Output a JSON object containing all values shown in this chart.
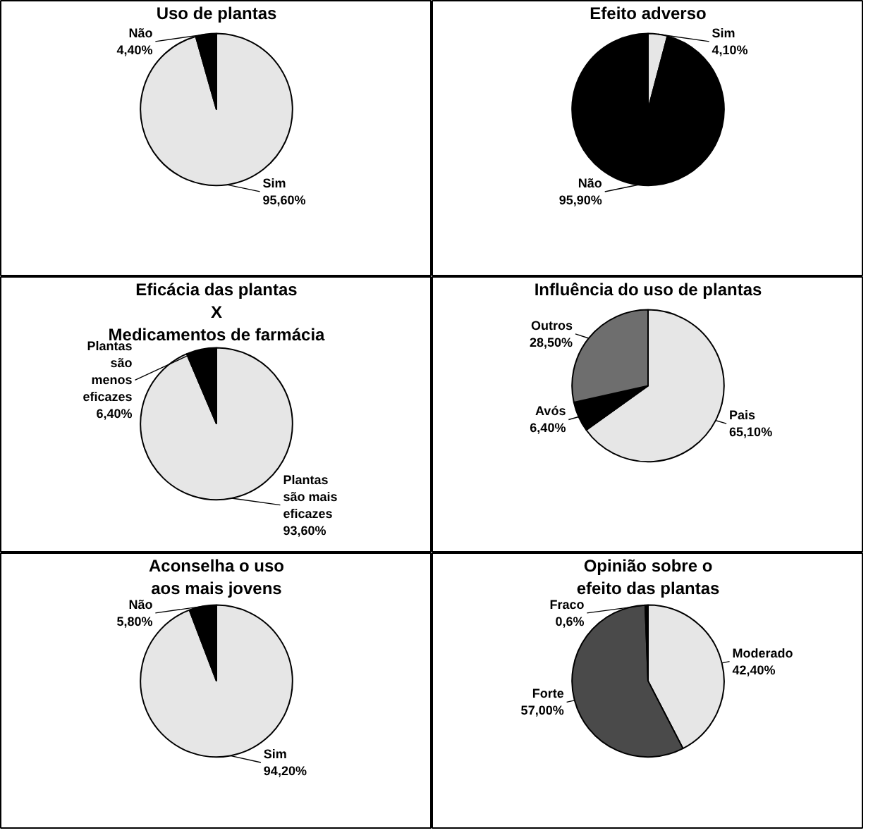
{
  "chart_data": [
    {
      "type": "pie",
      "title": "Uso de plantas",
      "categories": [
        "Sim",
        "Não"
      ],
      "values": [
        95.6,
        4.4
      ],
      "value_labels": [
        "95,60%",
        "4,40%"
      ],
      "colors": [
        "#e6e6e6",
        "#000000"
      ]
    },
    {
      "type": "pie",
      "title": "Efeito adverso",
      "categories": [
        "Sim",
        "Não"
      ],
      "values": [
        4.1,
        95.9
      ],
      "value_labels": [
        "4,10%",
        "95,90%"
      ],
      "colors": [
        "#e6e6e6",
        "#000000"
      ]
    },
    {
      "type": "pie",
      "title": "Eficácia das plantas\nX\nMedicamentos de farmácia",
      "categories": [
        "Plantas\nsão mais\neficazes",
        "Plantas\nsão\nmenos\neficazes"
      ],
      "values": [
        93.6,
        6.4
      ],
      "value_labels": [
        "93,60%",
        "6,40%"
      ],
      "colors": [
        "#e6e6e6",
        "#000000"
      ]
    },
    {
      "type": "pie",
      "title": "Influência do uso de plantas",
      "categories": [
        "Pais",
        "Avós",
        "Outros"
      ],
      "values": [
        65.1,
        6.4,
        28.5
      ],
      "value_labels": [
        "65,10%",
        "6,40%",
        "28,50%"
      ],
      "colors": [
        "#e6e6e6",
        "#000000",
        "#6e6e6e"
      ]
    },
    {
      "type": "pie",
      "title": "Aconselha o uso\naos mais jovens",
      "categories": [
        "Sim",
        "Não"
      ],
      "values": [
        94.2,
        5.8
      ],
      "value_labels": [
        "94,20%",
        "5,80%"
      ],
      "colors": [
        "#e6e6e6",
        "#000000"
      ]
    },
    {
      "type": "pie",
      "title": "Opinião sobre o\nefeito das plantas",
      "categories": [
        "Moderado",
        "Forte",
        "Fraco"
      ],
      "values": [
        42.4,
        57.0,
        0.6
      ],
      "value_labels": [
        "42,40%",
        "57,00%",
        "0,6%"
      ],
      "colors": [
        "#e6e6e6",
        "#4a4a4a",
        "#000000"
      ]
    }
  ]
}
